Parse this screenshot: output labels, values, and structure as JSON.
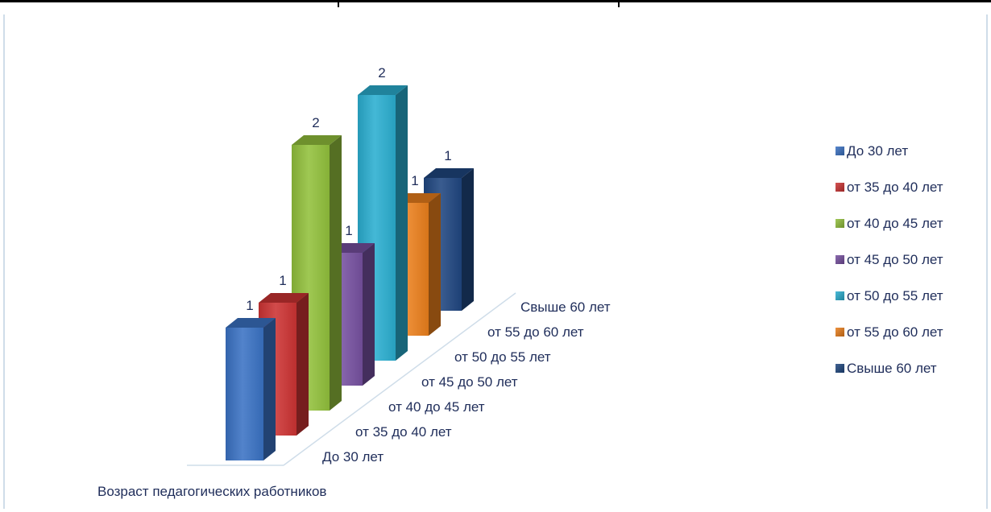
{
  "chart_data": {
    "type": "bar",
    "variant": "3d-column-series-depth",
    "categories": [
      "До 30 лет",
      "от 35 до 40 лет",
      "от 40 до 45 лет",
      "от 45 до 50 лет",
      "от 50 до 55 лет",
      "от 55  до 60 лет",
      "Свыше 60 лет"
    ],
    "series": [
      {
        "name": "До 30 лет",
        "value": 1,
        "color": "#3a72c4"
      },
      {
        "name": "от 35 до 40 лет",
        "value": 1,
        "color": "#cc3333"
      },
      {
        "name": "от 40 до 45 лет",
        "value": 2,
        "color": "#92c03c"
      },
      {
        "name": "от 45 до 50 лет",
        "value": 1,
        "color": "#7650a0"
      },
      {
        "name": "от 50 до 55 лет",
        "value": 2,
        "color": "#2aaed0"
      },
      {
        "name": "от 55  до 60 лет",
        "value": 1,
        "color": "#ea7f1c"
      },
      {
        "name": "Свыше 60 лет",
        "value": 1,
        "color": "#1f4680"
      }
    ],
    "data_labels": [
      "1",
      "1",
      "2",
      "1",
      "2",
      "1",
      "1"
    ],
    "xlabel": "Возраст педагогических работников",
    "ylabel": "",
    "legend_position": "right",
    "grid": false
  }
}
